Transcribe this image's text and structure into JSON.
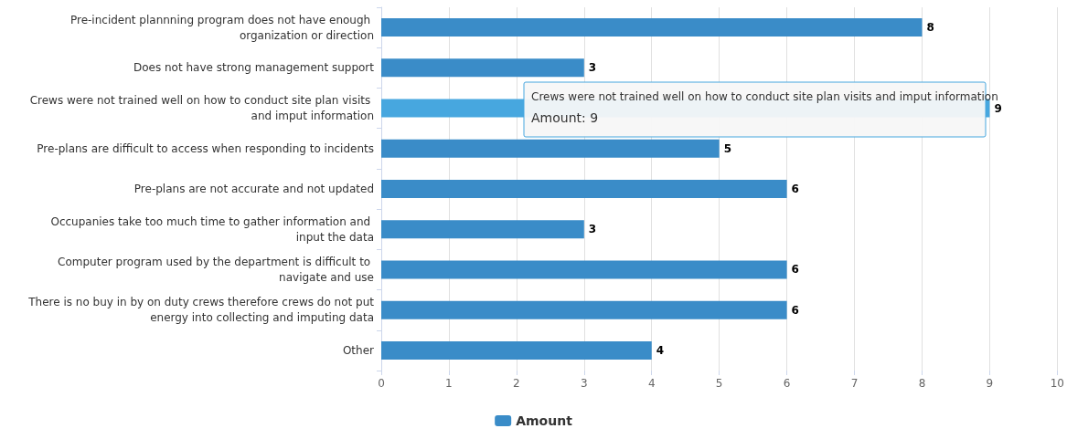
{
  "chart_data": {
    "type": "bar",
    "orientation": "horizontal",
    "categories": [
      "Pre-incident plannning program does not have enough organization or direction",
      "Does not have strong management support",
      "Crews were not trained well on how to conduct site plan visits and imput information",
      "Pre-plans are difficult to access when responding to incidents",
      "Pre-plans are not accurate and not updated",
      "Occupanies take too much time to gather information and input the data",
      "Computer program used by the department is difficult to navigate and use",
      "There is no buy in by on duty crews therefore crews do not put energy into collecting and imputing data",
      "Other"
    ],
    "series": [
      {
        "name": "Amount",
        "color": "#3a8cc8",
        "colors": [
          "#3a8cc8",
          "#3a8cc8",
          "#47a7df",
          "#3a8cc8",
          "#3a8cc8",
          "#3a8cc8",
          "#3a8cc8",
          "#3a8cc8",
          "#3a8cc8"
        ],
        "values": [
          8,
          3,
          9,
          5,
          6,
          3,
          6,
          6,
          4
        ]
      }
    ],
    "xlim": [
      0,
      10
    ],
    "xticks": [
      0,
      1,
      2,
      3,
      4,
      5,
      6,
      7,
      8,
      9,
      10
    ],
    "grid": "x",
    "legend": "bottom",
    "data_labels": true,
    "annotations": [
      "Crews were not trained well on how to conduct site plan visits and imput information",
      "Amount: 9"
    ]
  }
}
